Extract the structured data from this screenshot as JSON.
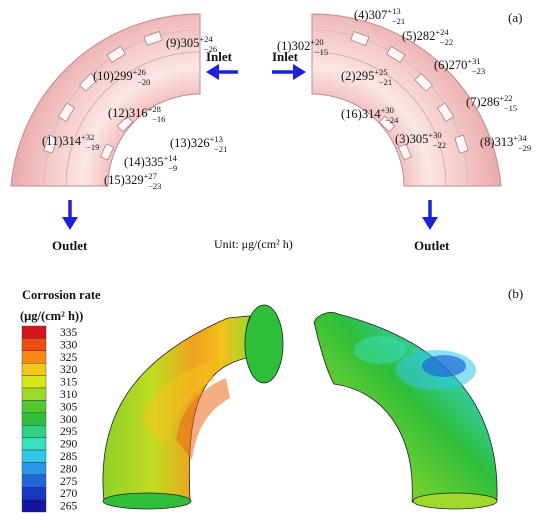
{
  "panel_a": {
    "label": "(a)",
    "unit_label": "Unit: μg/(cm² h)",
    "inlet_left": "Inlet",
    "inlet_right": "Inlet",
    "outlet_left": "Outlet",
    "outlet_right": "Outlet",
    "points": [
      {
        "id": "(1)",
        "value": "302",
        "plus": "+20",
        "minus": "−15"
      },
      {
        "id": "(2)",
        "value": "295",
        "plus": "+25",
        "minus": "−21"
      },
      {
        "id": "(3)",
        "value": "305",
        "plus": "+30",
        "minus": "−22"
      },
      {
        "id": "(4)",
        "value": "307",
        "plus": "+13",
        "minus": "−21"
      },
      {
        "id": "(5)",
        "value": "282",
        "plus": "+24",
        "minus": "−22"
      },
      {
        "id": "(6)",
        "value": "270",
        "plus": "+31",
        "minus": "−23"
      },
      {
        "id": "(7)",
        "value": "286",
        "plus": "+22",
        "minus": "−15"
      },
      {
        "id": "(8)",
        "value": "313",
        "plus": "+34",
        "minus": "−29"
      },
      {
        "id": "(9)",
        "value": "305",
        "plus": "+24",
        "minus": "−26"
      },
      {
        "id": "(10)",
        "value": "299",
        "plus": "+26",
        "minus": "−20"
      },
      {
        "id": "(11)",
        "value": "314",
        "plus": "+32",
        "minus": "−19"
      },
      {
        "id": "(12)",
        "value": "316",
        "plus": "+28",
        "minus": "−16"
      },
      {
        "id": "(13)",
        "value": "326",
        "plus": "+13",
        "minus": "−21"
      },
      {
        "id": "(14)",
        "value": "335",
        "plus": "+14",
        "minus": "−9"
      },
      {
        "id": "(15)",
        "value": "329",
        "plus": "+27",
        "minus": "−23"
      },
      {
        "id": "(16)",
        "value": "314",
        "plus": "+30",
        "minus": "−24"
      }
    ]
  },
  "panel_b": {
    "label": "(b)",
    "legend_title": "Corrosion rate",
    "legend_unit": "(μg/(cm² h))",
    "legend_values": [
      "335",
      "330",
      "325",
      "320",
      "315",
      "310",
      "305",
      "300",
      "295",
      "290",
      "285",
      "280",
      "275",
      "270",
      "265"
    ],
    "legend_colors": [
      "#d4141a",
      "#ee4d16",
      "#f88a14",
      "#f5c81a",
      "#d8e61c",
      "#9ed82a",
      "#52c82e",
      "#2ebe3a",
      "#2ed282",
      "#38e0c2",
      "#30c6e6",
      "#2a96e6",
      "#2066d8",
      "#1838c2",
      "#1414a8"
    ]
  },
  "colors": {
    "arrow": "#1c22d8",
    "pipe_pink": "#f2b6b6",
    "pipe_edge": "#c98a8a"
  }
}
